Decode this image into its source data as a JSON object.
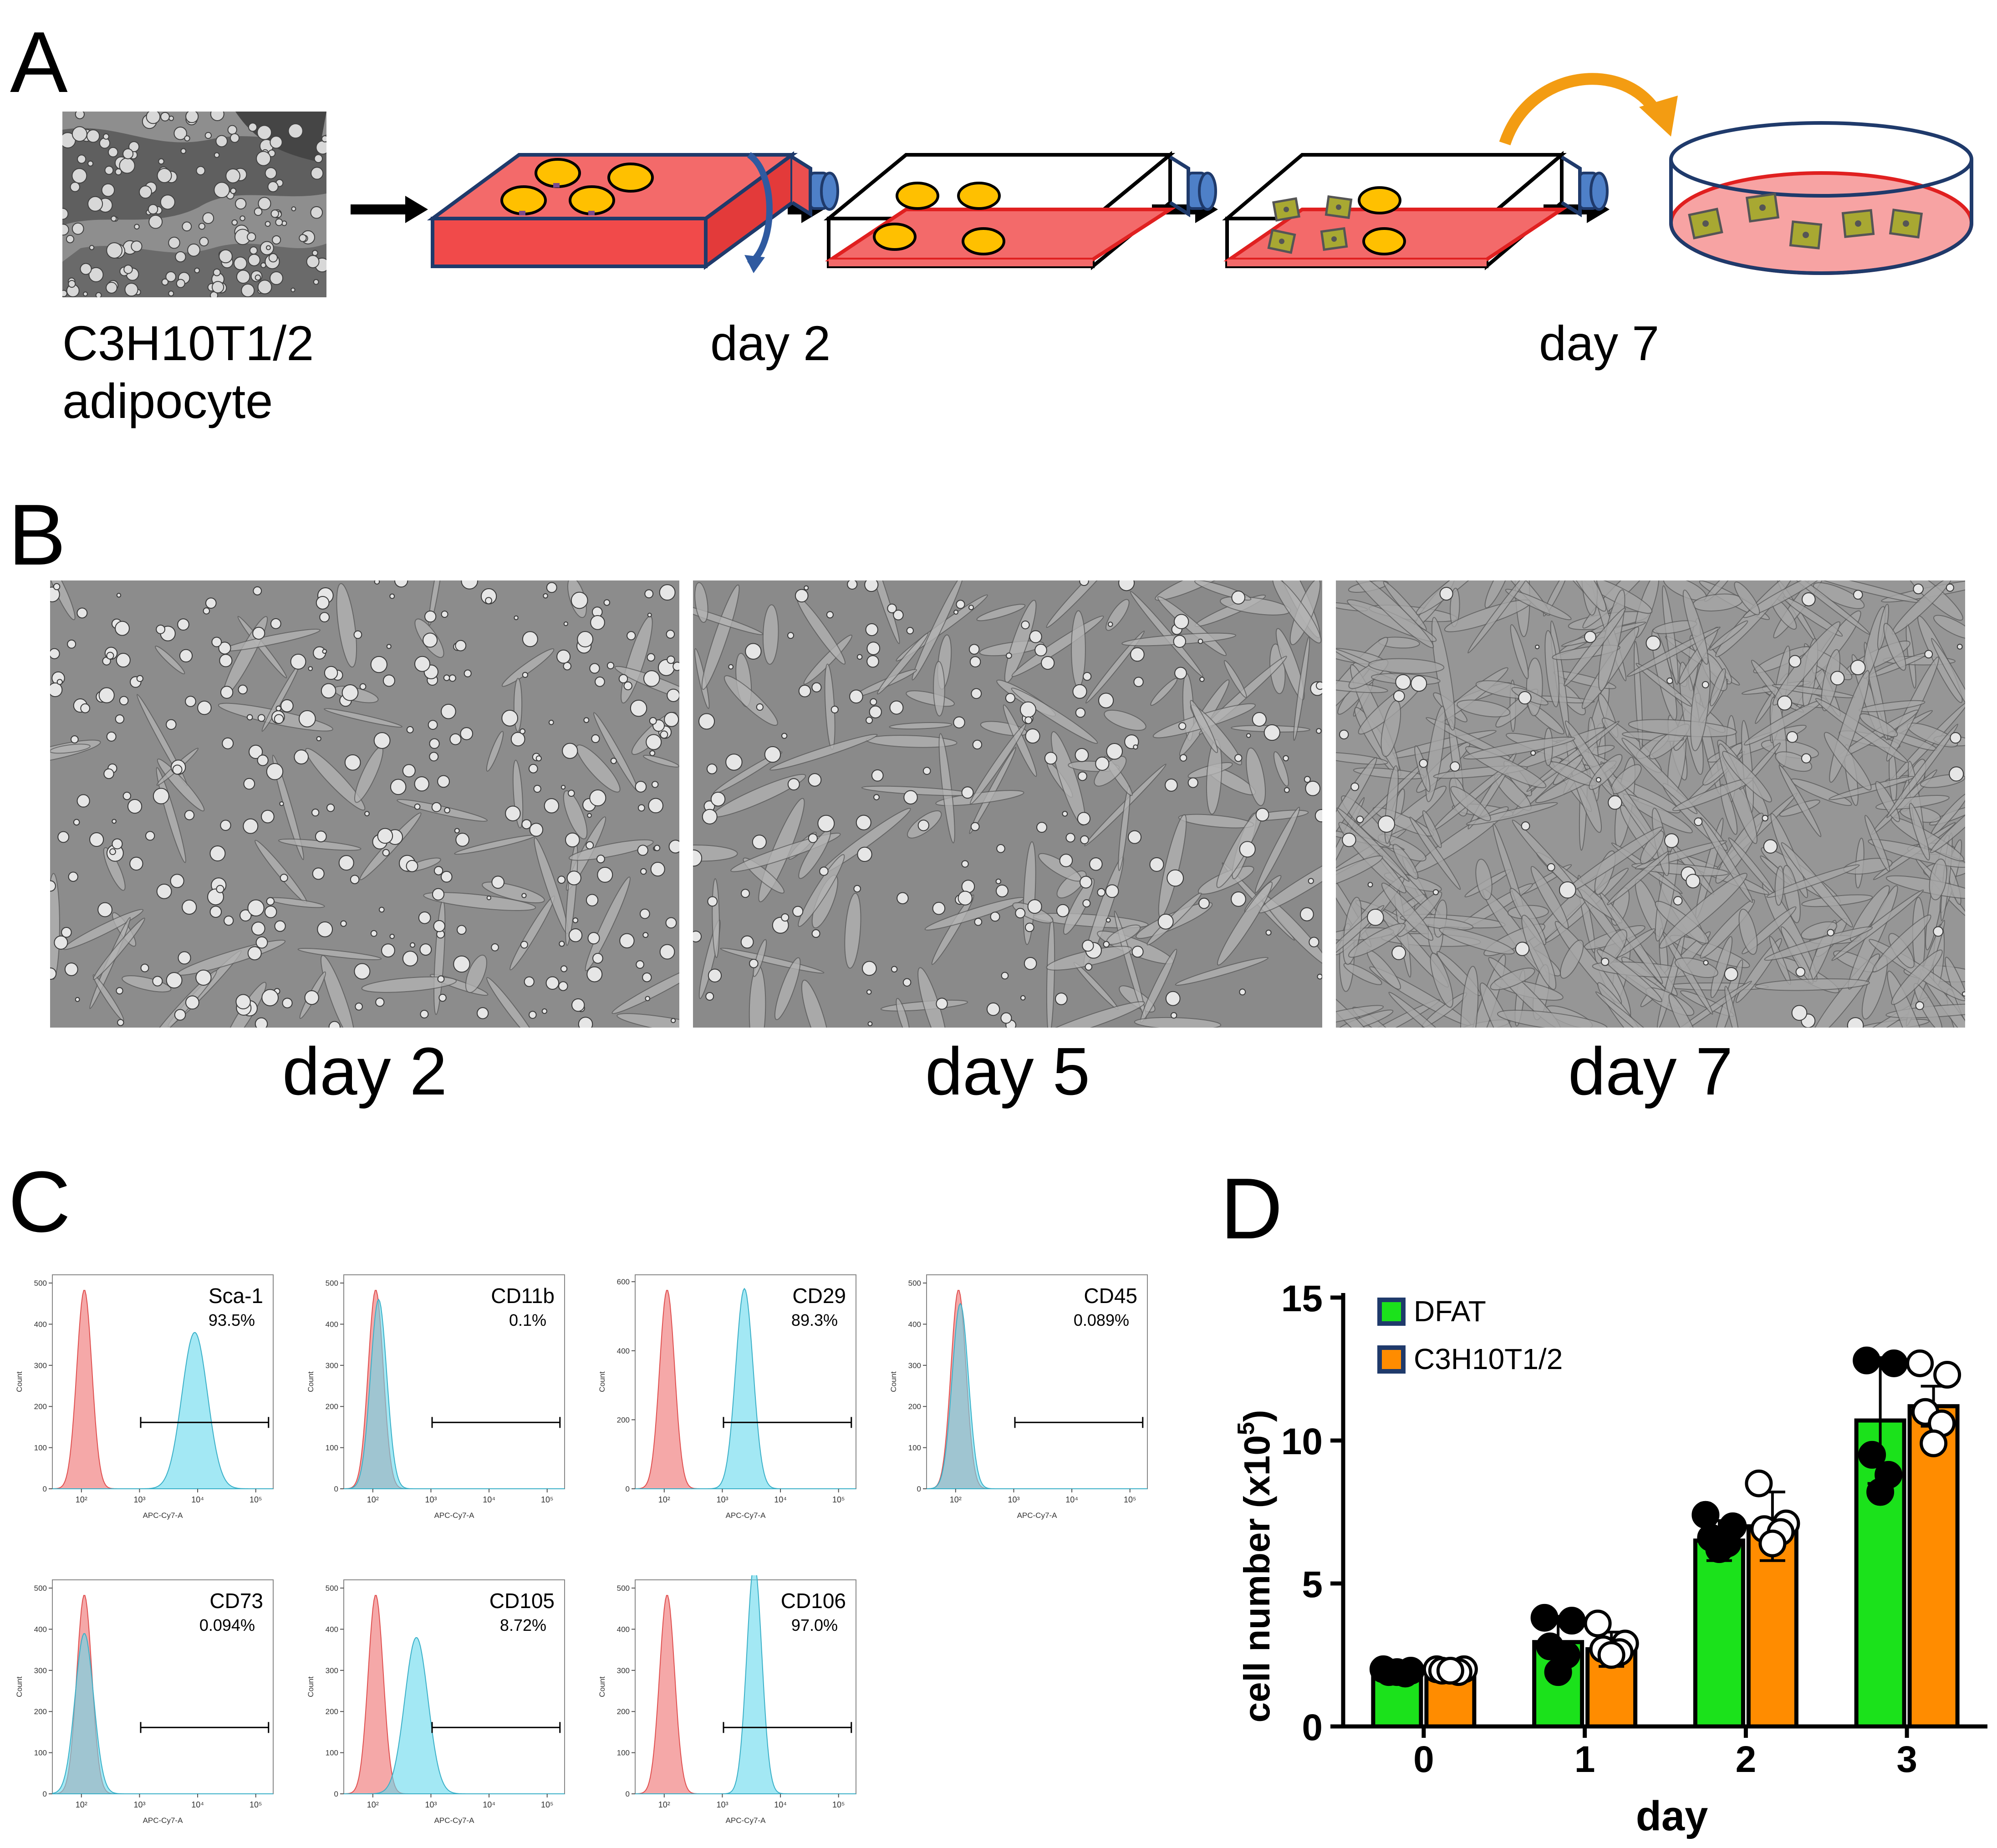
{
  "panel_a": {
    "letter": "A",
    "cell_label_line1": "C3H10T1/2",
    "cell_label_line2": "adipocyte",
    "step_labels": [
      "day 2",
      "day 7"
    ]
  },
  "panel_b": {
    "letter": "B",
    "captions": [
      "day 2",
      "day 5",
      "day 7"
    ]
  },
  "panel_c": {
    "letter": "C",
    "x_axis_label": "APC-Cy7-A",
    "y_axis_label": "Count",
    "x_ticks": [
      "10²",
      "10³",
      "10⁴",
      "10⁵"
    ],
    "colors": {
      "control": "#f28b8b",
      "stained": "#66d8ec",
      "overlap": "#b08c94"
    },
    "histograms": [
      {
        "marker": "Sca-1",
        "percent": "93.5%",
        "y_ticks": [
          "0",
          "100",
          "200",
          "300",
          "400",
          "500"
        ],
        "ymax": 520,
        "stained_peak_log": 3.95,
        "stained_sd": 0.22,
        "stained_height": 380
      },
      {
        "marker": "CD11b",
        "percent": "0.1%",
        "y_ticks": [
          "0",
          "100",
          "200",
          "300",
          "400",
          "500"
        ],
        "ymax": 520,
        "stained_peak_log": 2.1,
        "stained_sd": 0.14,
        "stained_height": 460
      },
      {
        "marker": "CD29",
        "percent": "89.3%",
        "y_ticks": [
          "0",
          "200",
          "400",
          "600"
        ],
        "ymax": 620,
        "stained_peak_log": 3.38,
        "stained_sd": 0.15,
        "stained_height": 580
      },
      {
        "marker": "CD45",
        "percent": "0.089%",
        "y_ticks": [
          "0",
          "100",
          "200",
          "300",
          "400",
          "500"
        ],
        "ymax": 520,
        "stained_peak_log": 2.08,
        "stained_sd": 0.14,
        "stained_height": 450
      },
      {
        "marker": "CD73",
        "percent": "0.094%",
        "y_ticks": [
          "0",
          "100",
          "200",
          "300",
          "400",
          "500"
        ],
        "ymax": 520,
        "stained_peak_log": 2.05,
        "stained_sd": 0.16,
        "stained_height": 390
      },
      {
        "marker": "CD105",
        "percent": "8.72%",
        "y_ticks": [
          "0",
          "100",
          "200",
          "300",
          "400",
          "500"
        ],
        "ymax": 520,
        "stained_peak_log": 2.75,
        "stained_sd": 0.2,
        "stained_height": 380
      },
      {
        "marker": "CD106",
        "percent": "97.0%",
        "y_ticks": [
          "0",
          "100",
          "200",
          "300",
          "400",
          "500"
        ],
        "ymax": 520,
        "stained_peak_log": 3.55,
        "stained_sd": 0.13,
        "stained_height": 560
      }
    ]
  },
  "chart_data": {
    "panel_letter": "D",
    "type": "bar",
    "xlabel": "day",
    "ylabel": "cell number (x10⁵)",
    "ylabel_main": "cell number (x10",
    "ylabel_exp": "5",
    "ylabel_close": ")",
    "categories": [
      "0",
      "1",
      "2",
      "3"
    ],
    "ylim": [
      0,
      15
    ],
    "y_ticks": [
      "0",
      "5",
      "10",
      "15"
    ],
    "legend_position": "top-left",
    "series": [
      {
        "name": "DFAT",
        "color": "#1be21b",
        "values": [
          1.9,
          2.95,
          6.5,
          10.7
        ],
        "errors": [
          0.1,
          0.9,
          0.7,
          2.2
        ],
        "points": [
          [
            2.0,
            1.95,
            1.9,
            1.85,
            1.9
          ],
          [
            3.8,
            3.7,
            2.8,
            2.5,
            1.9
          ],
          [
            7.4,
            7.0,
            6.6,
            6.4,
            6.2
          ],
          [
            12.8,
            12.7,
            9.5,
            8.8,
            8.2
          ]
        ]
      },
      {
        "name": "C3H10T1/2",
        "color": "#ff8c00",
        "values": [
          1.95,
          2.7,
          7.0,
          11.2
        ],
        "errors": [
          0.1,
          0.6,
          1.2,
          0.7
        ],
        "points": [
          [
            2.0,
            2.0,
            1.95,
            1.9,
            1.95
          ],
          [
            3.6,
            2.9,
            2.7,
            2.6,
            2.5
          ],
          [
            8.5,
            7.1,
            6.9,
            6.8,
            6.4
          ],
          [
            12.7,
            12.3,
            11.0,
            10.6,
            9.9
          ]
        ]
      }
    ]
  }
}
